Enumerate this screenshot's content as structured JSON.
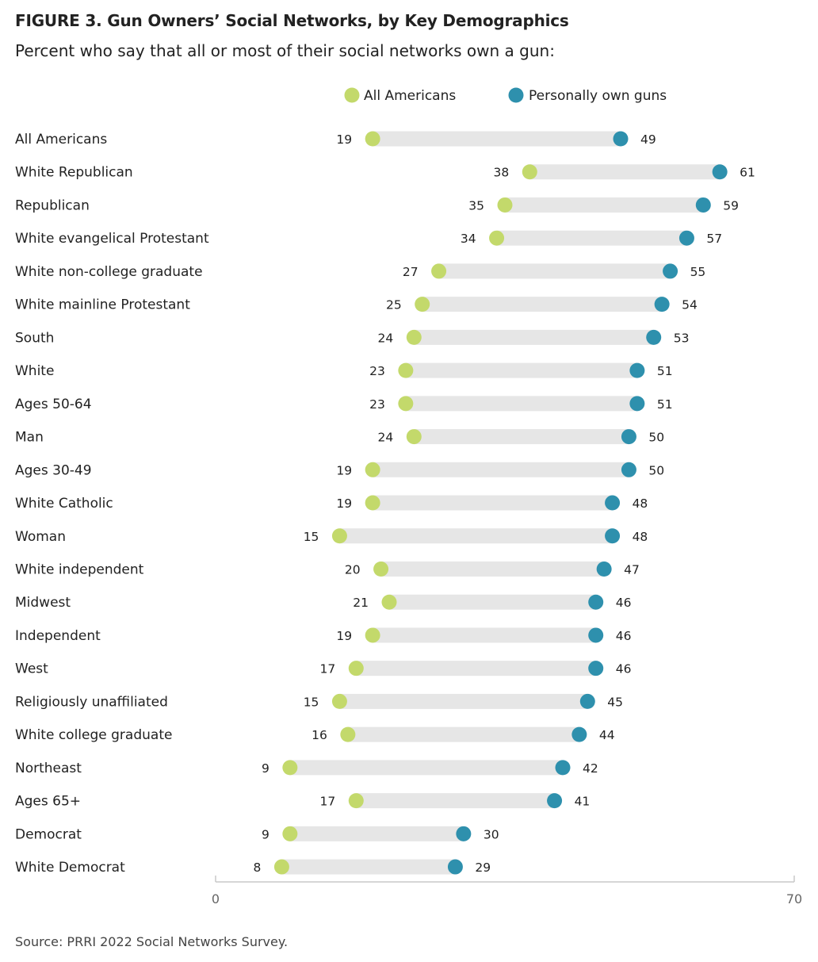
{
  "header": {
    "title": "FIGURE 3.  Gun Owners’ Social Networks, by Key Demographics",
    "subtitle": "Percent who say that all or most of their social networks own a gun:"
  },
  "footer": {
    "source": "Source: PRRI 2022 Social Networks Survey."
  },
  "chart_data": {
    "type": "dumbbell",
    "categories": [
      "All Americans",
      "White Republican",
      "Republican",
      "White evangelical Protestant",
      "White non-college graduate",
      "White mainline Protestant",
      "South",
      "White",
      "Ages 50-64",
      "Man",
      "Ages 30-49",
      "White Catholic",
      "Woman",
      "White independent",
      "Midwest",
      "Independent",
      "West",
      "Religiously unaffiliated",
      "White college graduate",
      "Northeast",
      "Ages 65+",
      "Democrat",
      "White Democrat"
    ],
    "series": [
      {
        "name": "All Americans",
        "color": "#c3d96b",
        "values": [
          19,
          38,
          35,
          34,
          27,
          25,
          24,
          23,
          23,
          24,
          19,
          19,
          15,
          20,
          21,
          19,
          17,
          15,
          16,
          9,
          17,
          9,
          8
        ]
      },
      {
        "name": "Personally own guns",
        "color": "#2e90ad",
        "values": [
          49,
          61,
          59,
          57,
          55,
          54,
          53,
          51,
          51,
          50,
          50,
          48,
          48,
          47,
          46,
          46,
          46,
          45,
          44,
          42,
          41,
          30,
          29
        ]
      }
    ],
    "xlim": [
      0,
      70
    ],
    "x_ticks": [
      "0",
      "70"
    ],
    "bar_color": "#e6e6e6",
    "legend_position": "top"
  }
}
